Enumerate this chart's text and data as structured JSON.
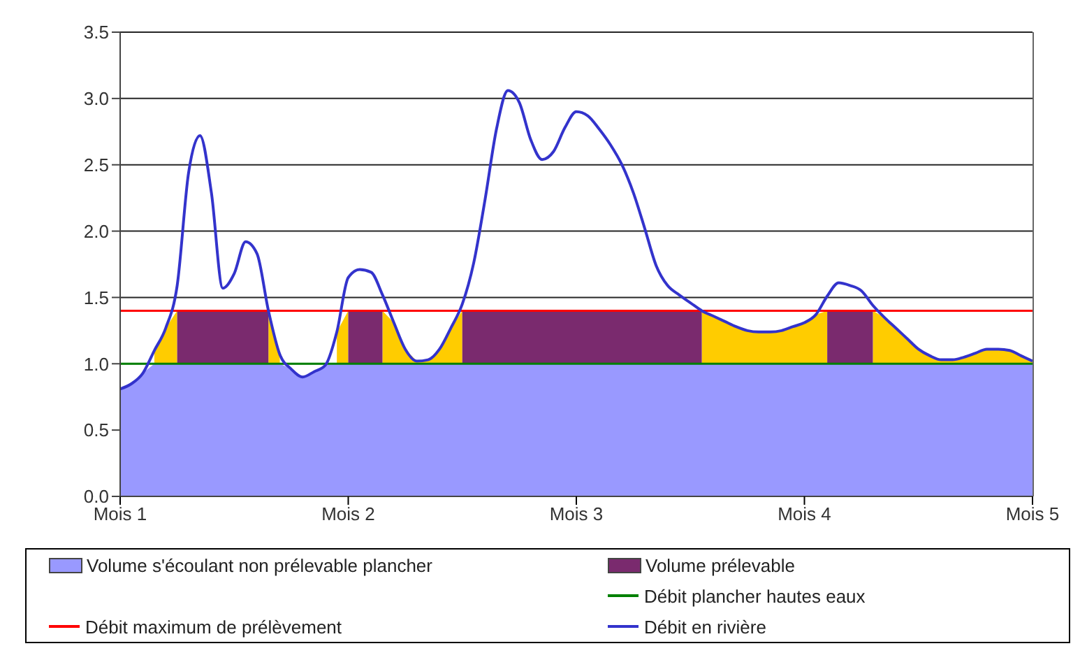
{
  "chart_data": {
    "type": "area",
    "categories": [
      "Mois 1",
      null,
      null,
      null,
      null,
      null,
      null,
      null,
      null,
      null,
      null,
      null,
      null,
      null,
      null,
      null,
      null,
      null,
      null,
      null,
      "Mois 2",
      null,
      null,
      null,
      null,
      null,
      null,
      null,
      null,
      null,
      null,
      null,
      null,
      null,
      null,
      null,
      null,
      null,
      null,
      null,
      "Mois 3",
      null,
      null,
      null,
      null,
      null,
      null,
      null,
      null,
      null,
      null,
      null,
      null,
      null,
      null,
      null,
      null,
      null,
      null,
      null,
      "Mois 4",
      null,
      null,
      null,
      null,
      null,
      null,
      null,
      null,
      null,
      null,
      null,
      null,
      null,
      null,
      null,
      null,
      null,
      null,
      null,
      "Mois 5"
    ],
    "series": [
      {
        "name": "Volume s'écoulant non prélevable plancher",
        "color": "#9999ff",
        "values": [
          0.81,
          0.85,
          0.93,
          1,
          1,
          1,
          1,
          1,
          1,
          1,
          1,
          1,
          1,
          1,
          1,
          0.96,
          0.9,
          0.94,
          0.99,
          1,
          1,
          1,
          1,
          1,
          1,
          1,
          1,
          1,
          1,
          1,
          1,
          1,
          1,
          1,
          1,
          1,
          1,
          1,
          1,
          1,
          1,
          1,
          1,
          1,
          1,
          1,
          1,
          1,
          1,
          1,
          1,
          1,
          1,
          1,
          1,
          1,
          1,
          1,
          1,
          1,
          1,
          1,
          1,
          1,
          1,
          1,
          1,
          1,
          1,
          1,
          1,
          1,
          1,
          1,
          1,
          1,
          1,
          1,
          1,
          1,
          1
        ]
      },
      {
        "name": "Volume prélevable",
        "color": "#7a2a6e",
        "values": [
          null,
          null,
          null,
          null,
          null,
          1.4,
          1.4,
          1.4,
          1.4,
          1.4,
          1.4,
          1.4,
          1.4,
          1.4,
          null,
          null,
          null,
          null,
          null,
          null,
          1.4,
          1.4,
          1.4,
          1.4,
          null,
          null,
          null,
          null,
          null,
          null,
          1.4,
          1.4,
          1.4,
          1.4,
          1.4,
          1.4,
          1.4,
          1.4,
          1.4,
          1.4,
          1.4,
          1.4,
          1.4,
          1.4,
          1.4,
          1.4,
          1.4,
          1.4,
          1.4,
          1.4,
          1.4,
          1.4,
          null,
          null,
          null,
          null,
          null,
          null,
          null,
          null,
          null,
          null,
          1.4,
          1.4,
          1.4,
          1.4,
          1.4,
          null,
          null,
          null,
          null,
          null,
          null,
          null,
          null,
          null,
          null,
          null,
          null,
          null,
          null
        ]
      },
      {
        "color": "#ffcc00",
        "values": [
          null,
          null,
          null,
          1.1,
          1.27,
          1.4,
          null,
          null,
          null,
          null,
          null,
          null,
          null,
          1.4,
          1.07,
          null,
          null,
          null,
          null,
          1.24,
          1.4,
          null,
          null,
          1.4,
          1.31,
          1.11,
          1.02,
          1.03,
          1.11,
          1.27,
          1.4,
          null,
          null,
          null,
          null,
          null,
          null,
          null,
          null,
          null,
          null,
          null,
          null,
          null,
          null,
          null,
          null,
          null,
          null,
          null,
          null,
          1.4,
          1.36,
          1.32,
          1.28,
          1.25,
          1.24,
          1.24,
          1.25,
          1.28,
          1.31,
          1.37,
          1.4,
          null,
          null,
          null,
          1.4,
          1.35,
          1.27,
          1.19,
          1.11,
          1.06,
          1.03,
          1.03,
          1.05,
          1.08,
          1.11,
          1.11,
          1.1,
          1.06,
          1.02
        ]
      },
      {
        "name": "Débit en rivière",
        "type": "line",
        "color": "#3333cc",
        "values": [
          0.81,
          0.85,
          0.93,
          1.1,
          1.27,
          1.59,
          2.44,
          2.72,
          2.29,
          1.57,
          1.68,
          1.92,
          1.83,
          1.4,
          1.07,
          0.96,
          0.9,
          0.94,
          0.99,
          1.24,
          1.65,
          1.71,
          1.69,
          1.52,
          1.31,
          1.11,
          1.02,
          1.03,
          1.11,
          1.27,
          1.45,
          1.76,
          2.24,
          2.77,
          3.06,
          2.97,
          2.69,
          2.54,
          2.6,
          2.78,
          2.9,
          2.87,
          2.77,
          2.65,
          2.5,
          2.29,
          2.02,
          1.74,
          1.59,
          1.52,
          1.46,
          1.4,
          1.36,
          1.32,
          1.28,
          1.25,
          1.24,
          1.24,
          1.25,
          1.28,
          1.31,
          1.37,
          1.51,
          1.61,
          1.59,
          1.55,
          1.44,
          1.35,
          1.27,
          1.19,
          1.11,
          1.06,
          1.03,
          1.03,
          1.05,
          1.08,
          1.11,
          1.11,
          1.1,
          1.06,
          1.02
        ]
      }
    ],
    "ref_lines": [
      {
        "axis": "y",
        "value": 1.0,
        "label": "Débit plancher hautes eaux",
        "color": "#008000"
      },
      {
        "axis": "y",
        "value": 1.4,
        "label": "Débit maximum de prélèvement",
        "color": "#ff0000"
      }
    ],
    "ylim": [
      0,
      3.5
    ],
    "yticks": [
      {
        "value": 0,
        "label": "0.0"
      },
      {
        "value": 0.5,
        "label": "0.5"
      },
      {
        "value": 1,
        "label": "1.0"
      },
      {
        "value": 1.5,
        "label": "1.5"
      },
      {
        "value": 2,
        "label": "2.0"
      },
      {
        "value": 2.5,
        "label": "2.5"
      },
      {
        "value": 3,
        "label": "3.0"
      },
      {
        "value": 3.5,
        "label": "3.5"
      }
    ],
    "grid": "y",
    "legend": "bottom"
  }
}
